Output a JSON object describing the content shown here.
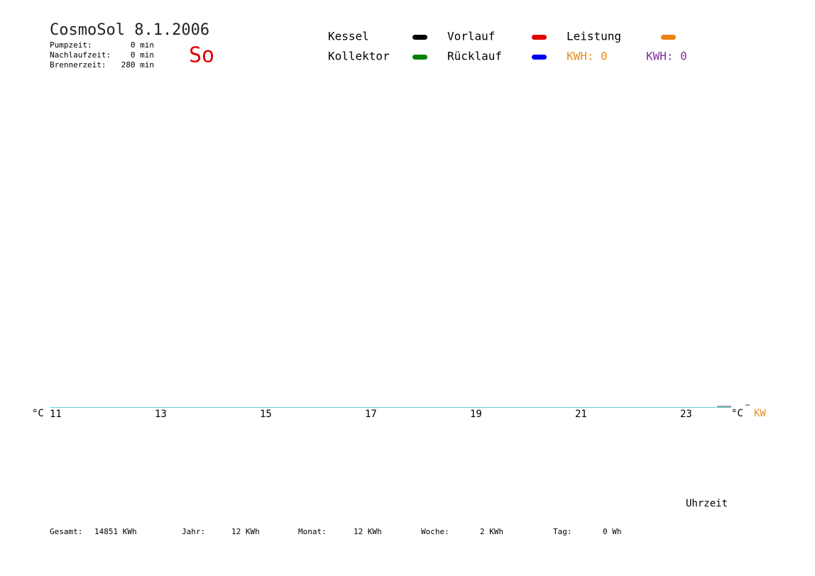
{
  "chart_data": {
    "type": "line",
    "title": "CosmoSol 8.1.2006",
    "day": "So",
    "info": [
      {
        "label": "Pumpzeit:",
        "value": "0 min"
      },
      {
        "label": "Nachlaufzeit:",
        "value": "0 min"
      },
      {
        "label": "Brennerzeit:",
        "value": "280 min"
      }
    ],
    "series": [
      {
        "name": "Kessel",
        "color": "#000000"
      },
      {
        "name": "Vorlauf",
        "color": "#e00000"
      },
      {
        "name": "Leistung",
        "color": "#f08010"
      },
      {
        "name": "Kollektor",
        "color": "#008000"
      },
      {
        "name": "Rücklauf",
        "color": "#0000f0"
      }
    ],
    "kwh": [
      {
        "label": "KWH: 0",
        "color": "#e89020"
      },
      {
        "label": "KWH: 0",
        "color": "#8030a0"
      }
    ],
    "y_label": "°C",
    "y2_label": "°C",
    "y2_unit": "KW",
    "x_label": "Uhrzeit",
    "xlim": [
      11,
      24
    ],
    "xticks": [
      11,
      13,
      15,
      17,
      19,
      21,
      23
    ],
    "totals": [
      {
        "label": "Gesamt:",
        "value": "14851 KWh"
      },
      {
        "label": "Jahr:",
        "value": "12 KWh"
      },
      {
        "label": "Monat:",
        "value": "12 KWh"
      },
      {
        "label": "Woche:",
        "value": "2 KWh"
      },
      {
        "label": "Tag:",
        "value": "0 Wh"
      }
    ]
  }
}
